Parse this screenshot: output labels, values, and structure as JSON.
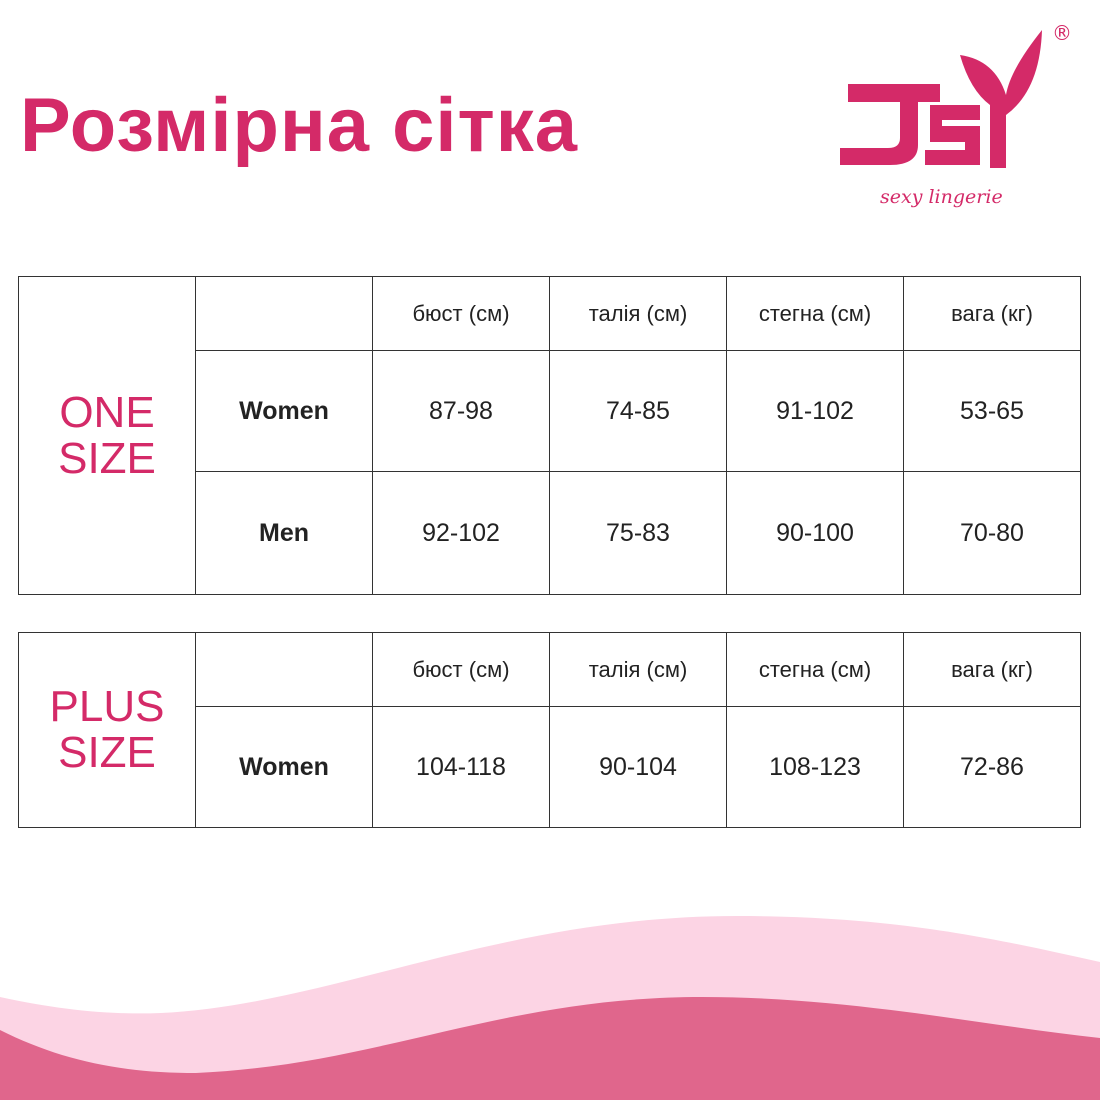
{
  "title": "Розмірна сітка",
  "logo": {
    "text": "JSY",
    "tagline": "sexy lingerie",
    "registered": "®"
  },
  "colors": {
    "brand": "#d42a68",
    "wave_light": "#fcd4e4",
    "wave_dark": "#e0668c"
  },
  "tables": [
    {
      "group_line1": "ONE",
      "group_line2": "SIZE",
      "headers": [
        "бюст (см)",
        "талія (см)",
        "стегна (см)",
        "вага (кг)"
      ],
      "rows": [
        {
          "label": "Women",
          "values": [
            "87-98",
            "74-85",
            "91-102",
            "53-65"
          ]
        },
        {
          "label": "Men",
          "values": [
            "92-102",
            "75-83",
            "90-100",
            "70-80"
          ]
        }
      ]
    },
    {
      "group_line1": "PLUS",
      "group_line2": "SIZE",
      "headers": [
        "бюст (см)",
        "талія (см)",
        "стегна (см)",
        "вага (кг)"
      ],
      "rows": [
        {
          "label": "Women",
          "values": [
            "104-118",
            "90-104",
            "108-123",
            "72-86"
          ]
        }
      ]
    }
  ]
}
